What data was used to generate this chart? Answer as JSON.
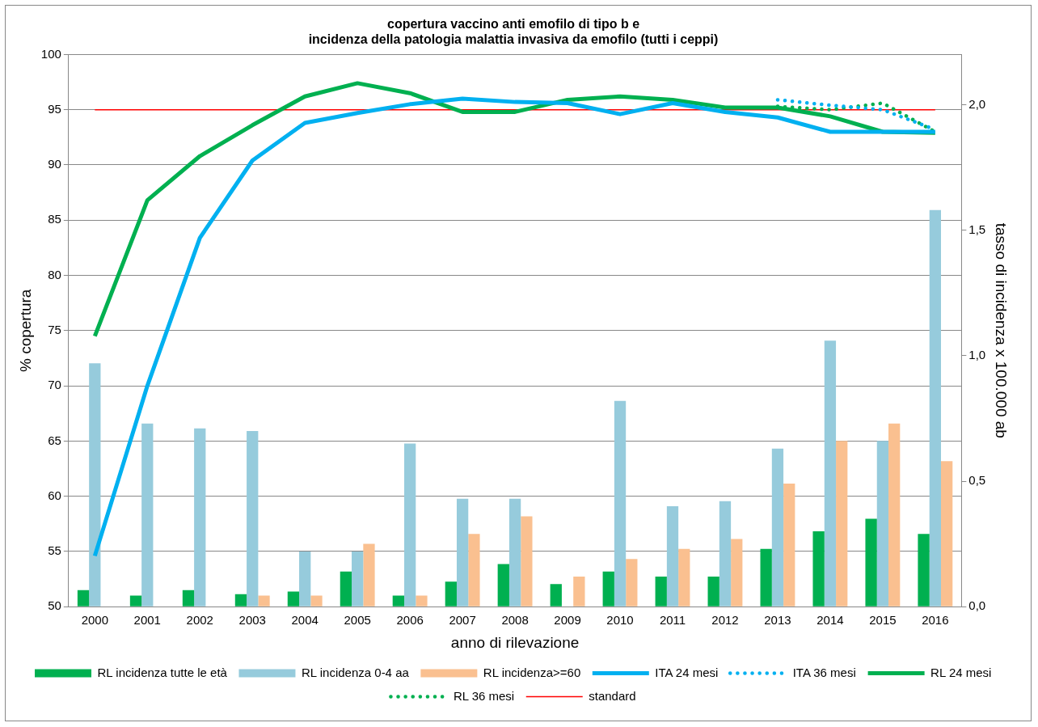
{
  "chart_data": {
    "type": "bar",
    "title": "copertura vaccino anti emofilo di tipo b e\nincidenza della patologia malattia invasiva da emofilo (tutti i ceppi)",
    "xlabel": "anno di rilevazione",
    "ylabel": "% copertura",
    "y2label": "tasso di incidenza x 100.000 ab",
    "categories": [
      "2000",
      "2001",
      "2002",
      "2003",
      "2004",
      "2005",
      "2006",
      "2007",
      "2008",
      "2009",
      "2010",
      "2011",
      "2012",
      "2013",
      "2014",
      "2015",
      "2016"
    ],
    "series": [
      {
        "name": "RL incidenza tutte le età",
        "axis": "y2",
        "color": "#00b050",
        "values": [
          0.066,
          0.044,
          0.066,
          0.05,
          0.06,
          0.14,
          0.044,
          0.1,
          0.17,
          0.09,
          0.14,
          0.12,
          0.12,
          0.23,
          0.3,
          0.35,
          0.29
        ]
      },
      {
        "name": "RL incidenza 0-4 aa",
        "axis": "y2",
        "color": "#96cbdc",
        "values": [
          0.97,
          0.73,
          0.71,
          0.7,
          0.22,
          0.22,
          0.65,
          0.43,
          0.43,
          null,
          0.82,
          0.4,
          0.42,
          0.63,
          1.06,
          0.66,
          1.58
        ]
      },
      {
        "name": "RL incidenza>=60",
        "axis": "y2",
        "color": "#fac090",
        "values": [
          null,
          null,
          null,
          0.044,
          0.044,
          0.25,
          0.044,
          0.29,
          0.36,
          0.12,
          0.19,
          0.23,
          0.27,
          0.49,
          0.66,
          0.73,
          0.58
        ]
      },
      {
        "name": "ITA 24 mesi",
        "type": "line",
        "color": "#00b0f0",
        "line_style": "solid",
        "values": [
          54.6,
          70.0,
          83.4,
          90.4,
          93.8,
          94.7,
          95.5,
          96.0,
          95.7,
          95.6,
          94.6,
          95.6,
          94.8,
          94.3,
          93.0,
          93.0,
          93.0
        ]
      },
      {
        "name": "ITA 36 mesi",
        "type": "line",
        "color": "#00b0f0",
        "line_style": "dotted",
        "values": [
          null,
          null,
          null,
          null,
          null,
          null,
          null,
          null,
          null,
          null,
          null,
          null,
          null,
          95.9,
          95.4,
          95.0,
          93.2
        ]
      },
      {
        "name": "RL 24 mesi",
        "type": "line",
        "color": "#00b050",
        "line_style": "solid",
        "values": [
          74.5,
          86.8,
          90.8,
          93.6,
          96.2,
          97.4,
          96.5,
          94.8,
          94.8,
          95.9,
          96.2,
          95.9,
          95.2,
          95.2,
          94.4,
          93.0,
          92.9
        ]
      },
      {
        "name": "RL 36 mesi",
        "type": "line",
        "color": "#00b050",
        "line_style": "dotted",
        "values": [
          null,
          null,
          null,
          null,
          null,
          null,
          null,
          null,
          null,
          null,
          null,
          null,
          null,
          95.3,
          95.0,
          95.6,
          93.0
        ]
      },
      {
        "name": "standard",
        "type": "line",
        "color": "#ff0000",
        "line_style": "solid",
        "values": [
          95,
          95,
          95,
          95,
          95,
          95,
          95,
          95,
          95,
          95,
          95,
          95,
          95,
          95,
          95,
          95,
          95
        ]
      }
    ],
    "ylim": [
      50,
      100
    ],
    "yticks": [
      50,
      55,
      60,
      65,
      70,
      75,
      80,
      85,
      90,
      95,
      100
    ],
    "y2lim": [
      0,
      2.2
    ],
    "y2ticks": [
      {
        "value": 0,
        "label": "0,0"
      },
      {
        "value": 0.5,
        "label": "0,5"
      },
      {
        "value": 1,
        "label": "1,0"
      },
      {
        "value": 1.5,
        "label": "1,5"
      },
      {
        "value": 2,
        "label": "2,0"
      }
    ],
    "grid": "y",
    "legend": "bottom",
    "marker": "none"
  }
}
